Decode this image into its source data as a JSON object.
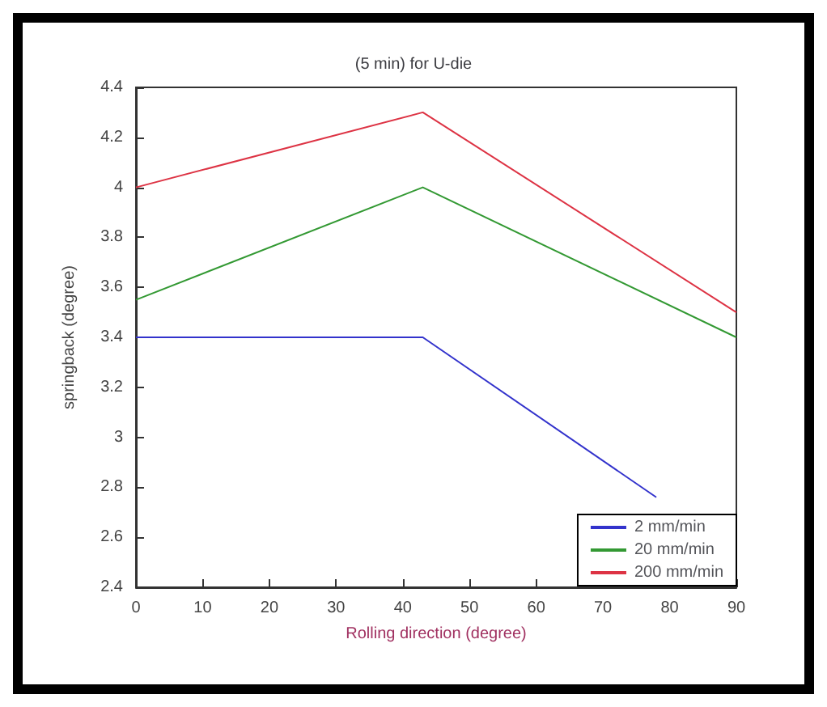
{
  "chart_data": {
    "type": "line",
    "title": "(5 min) for U-die",
    "xlabel": "Rolling direction (degree)",
    "ylabel": "springback (degree)",
    "x": [
      0,
      43,
      90
    ],
    "series": [
      {
        "name": "2 mm/min",
        "color": "#3333cc",
        "x": [
          0,
          43,
          78
        ],
        "values": [
          3.4,
          3.4,
          2.76
        ]
      },
      {
        "name": "20 mm/min",
        "color": "#339933",
        "values": [
          3.55,
          4.0,
          3.4
        ]
      },
      {
        "name": "200 mm/min",
        "color": "#dd3344",
        "values": [
          4.0,
          4.3,
          3.5
        ]
      }
    ],
    "xlim": [
      0,
      90
    ],
    "xticks": [
      0,
      10,
      20,
      30,
      40,
      50,
      60,
      70,
      80,
      90
    ],
    "ylim": [
      2.4,
      4.4
    ],
    "yticks": [
      2.4,
      2.6,
      2.8,
      3,
      3.2,
      3.4,
      3.6,
      3.8,
      4,
      4.2,
      4.4
    ],
    "grid": false,
    "legend": "bottom right",
    "marker": "none",
    "line_style": "solid"
  }
}
